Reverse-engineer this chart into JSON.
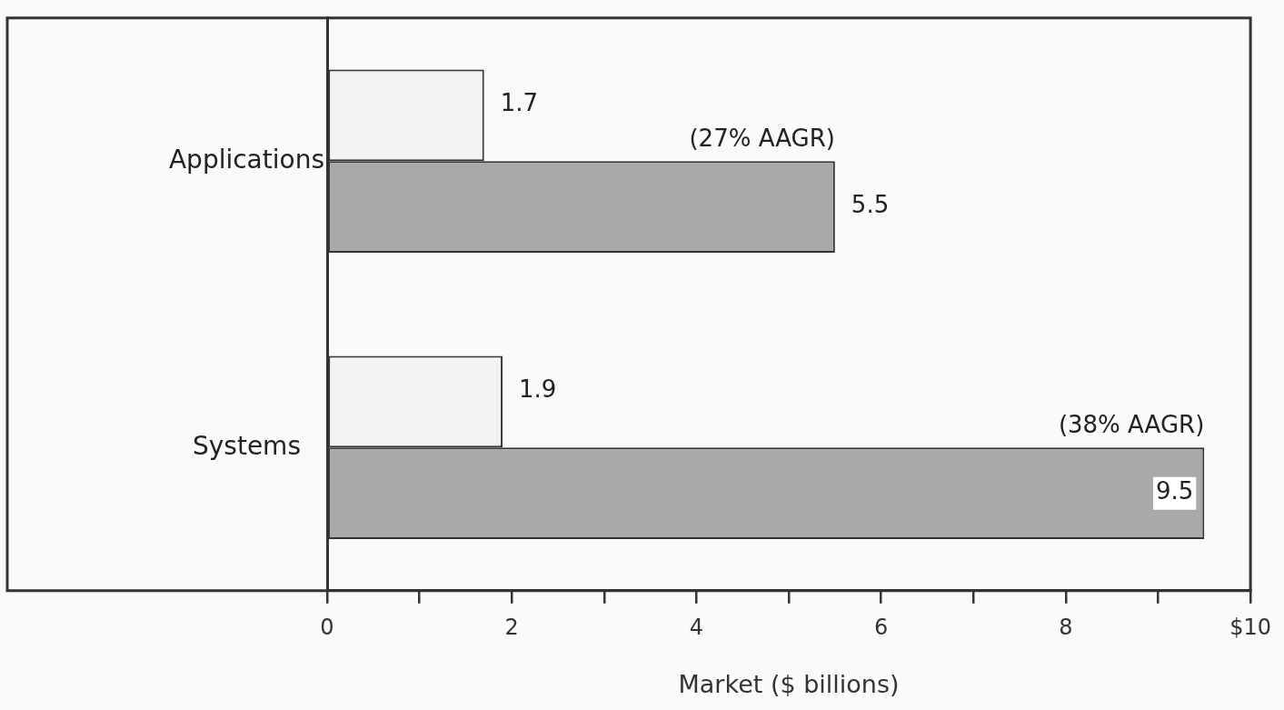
{
  "chart_data": {
    "type": "bar",
    "orientation": "horizontal",
    "xlabel": "Market ($ billions)",
    "categories": [
      "Applications",
      "Systems"
    ],
    "series": [
      {
        "color": "#f2f2f2",
        "values": [
          1.7,
          1.9
        ]
      },
      {
        "color": "#a9a9a9",
        "values": [
          5.5,
          9.5
        ]
      }
    ],
    "xlim": [
      0,
      10
    ],
    "xticks": [
      0,
      {
        "value": 1,
        "label": null
      },
      2,
      {
        "value": 3,
        "label": null
      },
      4,
      {
        "value": 5,
        "label": null
      },
      6,
      {
        "value": 7,
        "label": null
      },
      8,
      {
        "value": 9,
        "label": null
      },
      {
        "value": 10,
        "label": "$10"
      }
    ],
    "data_labels": true,
    "grid": false,
    "legend": false,
    "annotations": [
      "(27% AAGR)",
      "(38% AAGR)"
    ]
  }
}
